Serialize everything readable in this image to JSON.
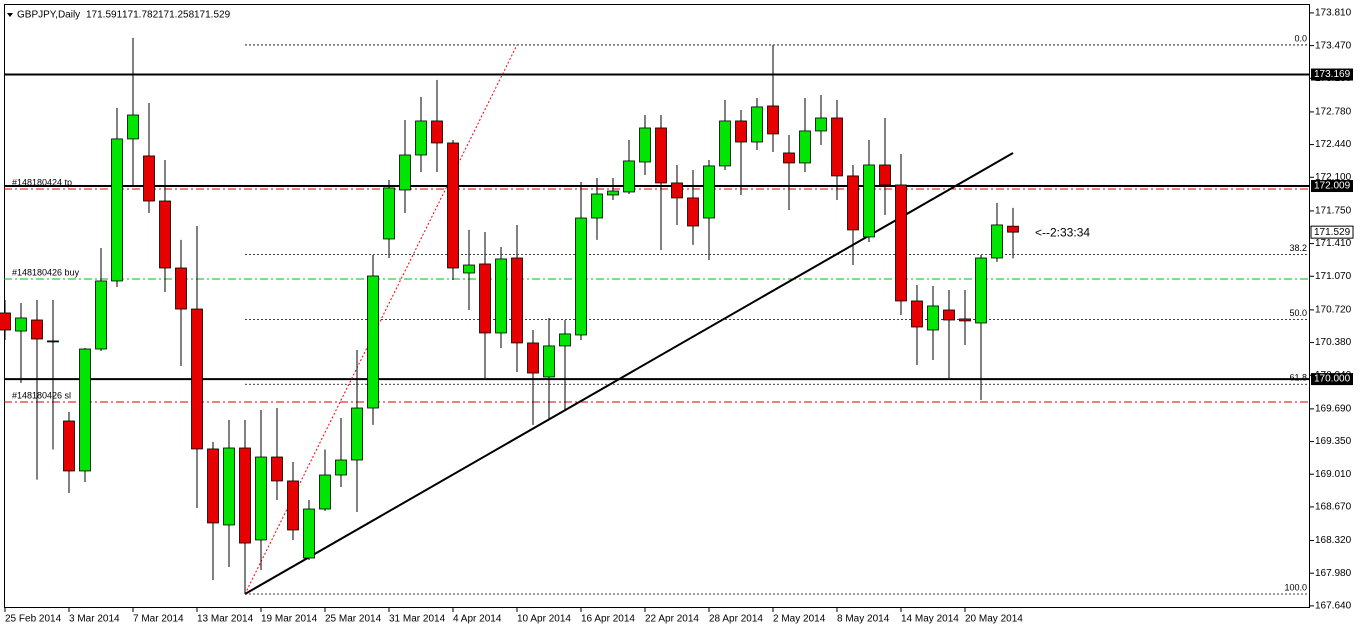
{
  "chart_data": {
    "type": "candlestick",
    "symbol": "GBPJPY,Daily",
    "categories": [
      "25 Feb 2014",
      null,
      null,
      null,
      "3 Mar 2014",
      null,
      null,
      null,
      "7 Mar 2014",
      null,
      null,
      null,
      "13 Mar 2014",
      null,
      null,
      null,
      "19 Mar 2014",
      null,
      null,
      null,
      "25 Mar 2014",
      null,
      null,
      null,
      "31 Mar 2014",
      null,
      null,
      null,
      "4 Apr 2014",
      null,
      null,
      null,
      "10 Apr 2014",
      null,
      null,
      null,
      "16 Apr 2014",
      null,
      null,
      null,
      "22 Apr 2014",
      null,
      null,
      null,
      "28 Apr 2014",
      null,
      null,
      null,
      "2 May 2014",
      null,
      null,
      null,
      "8 May 2014",
      null,
      null,
      null,
      "14 May 2014",
      null,
      null,
      null,
      "20 May 2014",
      null,
      null,
      null
    ],
    "open": [
      170.688,
      170.5,
      170.615,
      170.397,
      169.564,
      169.044,
      170.313,
      171.021,
      172.499,
      172.322,
      171.853,
      171.156,
      170.729,
      169.273,
      168.482,
      169.283,
      168.326,
      169.189,
      168.94,
      168.138,
      168.648,
      169.002,
      169.158,
      169.699,
      171.458,
      171.968,
      172.332,
      172.686,
      172.457,
      171.104,
      171.198,
      170.48,
      171.26,
      170.376,
      170.022,
      170.345,
      170.459,
      171.676,
      171.916,
      171.947,
      172.259,
      172.613,
      172.041,
      171.885,
      171.676,
      172.218,
      172.686,
      172.467,
      172.842,
      172.353,
      172.249,
      172.582,
      172.717,
      172.114,
      171.479,
      172.228,
      172.02,
      170.813,
      170.511,
      170.719,
      170.626,
      170.584,
      171.26,
      171.591
    ],
    "high": [
      170.823,
      170.792,
      170.823,
      170.823,
      169.658,
      170.324,
      171.364,
      172.821,
      173.55,
      172.873,
      172.28,
      171.448,
      171.593,
      169.346,
      169.575,
      169.575,
      169.678,
      169.699,
      169.137,
      168.742,
      169.267,
      169.595,
      170.303,
      171.291,
      172.072,
      172.696,
      172.936,
      173.113,
      172.488,
      171.552,
      171.531,
      171.375,
      171.604,
      170.511,
      170.636,
      170.615,
      172.051,
      172.093,
      172.093,
      172.488,
      172.748,
      172.748,
      172.228,
      172.176,
      172.28,
      172.904,
      172.8,
      172.925,
      173.477,
      172.54,
      172.925,
      172.956,
      172.904,
      172.228,
      172.488,
      172.717,
      172.342,
      170.979,
      170.969,
      170.927,
      170.927,
      171.291,
      171.833,
      171.782
    ],
    "low": [
      170.407,
      169.96,
      168.954,
      169.267,
      168.815,
      168.929,
      170.292,
      170.958,
      172.02,
      171.728,
      170.906,
      170.136,
      168.659,
      167.91,
      168.045,
      167.764,
      168.014,
      168.742,
      168.326,
      168.118,
      168.628,
      168.877,
      168.617,
      169.523,
      171.26,
      171.728,
      172.155,
      172.155,
      171.031,
      170.719,
      170.011,
      170.323,
      170.074,
      169.523,
      169.575,
      169.678,
      170.407,
      171.448,
      171.864,
      171.926,
      172.124,
      171.343,
      171.604,
      171.396,
      171.239,
      172.176,
      171.916,
      172.384,
      172.363,
      171.76,
      172.155,
      172.436,
      171.864,
      171.187,
      171.427,
      171.708,
      170.667,
      170.147,
      170.199,
      170.011,
      170.355,
      169.783,
      171.219,
      171.258
    ],
    "close": [
      170.511,
      170.636,
      170.417,
      170.39,
      169.044,
      170.313,
      171.021,
      172.499,
      172.748,
      171.853,
      171.156,
      170.729,
      169.273,
      168.503,
      169.283,
      168.294,
      169.189,
      168.94,
      168.43,
      168.648,
      169.002,
      169.158,
      169.699,
      171.073,
      171.989,
      172.332,
      172.686,
      172.457,
      171.156,
      171.187,
      170.48,
      171.25,
      170.376,
      170.063,
      170.345,
      170.47,
      171.676,
      171.926,
      171.957,
      172.27,
      172.613,
      172.041,
      171.885,
      171.593,
      172.218,
      172.686,
      172.467,
      172.832,
      172.551,
      172.249,
      172.582,
      172.717,
      172.114,
      171.552,
      172.228,
      172.02,
      170.813,
      170.542,
      170.761,
      170.615,
      170.605,
      171.26,
      171.604,
      171.529
    ],
    "up_color": "#00e600",
    "down_color": "#e60000",
    "ylim": [
      167.618,
      173.903
    ],
    "yticks": [
      {
        "value": 173.81,
        "label": "173.810"
      },
      {
        "value": 173.47,
        "label": "173.470"
      },
      {
        "value": 173.13,
        "label": "173.130"
      },
      {
        "value": 172.78,
        "label": "172.780"
      },
      {
        "value": 172.44,
        "label": "172.440"
      },
      {
        "value": 172.1,
        "label": "172.100"
      },
      {
        "value": 171.75,
        "label": "171.750"
      },
      {
        "value": 171.41,
        "label": "171.410"
      },
      {
        "value": 171.07,
        "label": "171.070"
      },
      {
        "value": 170.72,
        "label": "170.720"
      },
      {
        "value": 170.38,
        "label": "170.380"
      },
      {
        "value": 170.04,
        "label": "170.040"
      },
      {
        "value": 169.69,
        "label": "169.690"
      },
      {
        "value": 169.35,
        "label": "169.350"
      },
      {
        "value": 169.01,
        "label": "169.010"
      },
      {
        "value": 168.67,
        "label": "168.670"
      },
      {
        "value": 168.32,
        "label": "168.320"
      },
      {
        "value": 167.98,
        "label": "167.980"
      },
      {
        "value": 167.64,
        "label": "167.640"
      }
    ],
    "hlines": [
      {
        "value": 173.169,
        "label": "173.169"
      },
      {
        "value": 172.009,
        "label": "172.009"
      },
      {
        "value": 170,
        "label": "170.000"
      }
    ],
    "order_lines": [
      {
        "label": "#148180424 tp",
        "price": 171.978,
        "color": "#e00000"
      },
      {
        "label": "#148180426 buy",
        "price": 171.042,
        "color": "#00c000"
      },
      {
        "label": "#148180426 sl",
        "price": 169.762,
        "color": "#e00000"
      }
    ],
    "fibonacci": {
      "start_index": 15,
      "levels": [
        {
          "label": "0.0",
          "price": 173.477
        },
        {
          "label": "38.2",
          "price": 171.295
        },
        {
          "label": "50.0",
          "price": 170.621
        },
        {
          "label": "61.8",
          "price": 169.946
        },
        {
          "label": "100.0",
          "price": 167.764
        }
      ]
    },
    "trendlines": [
      {
        "from_index": 15,
        "from_price": 167.764,
        "to_index": 63,
        "to_price": 172.353,
        "color": "#000000",
        "style": "solid"
      },
      {
        "from_index": 15,
        "from_price": 167.764,
        "to_index": 32,
        "to_price": 173.477,
        "color": "#ff0000",
        "style": "dotted"
      }
    ],
    "countdown": "<--2:33:34"
  }
}
